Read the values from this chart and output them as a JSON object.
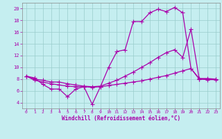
{
  "xlabel": "Windchill (Refroidissement éolien,°C)",
  "xlim": [
    -0.5,
    23.5
  ],
  "ylim": [
    3,
    21
  ],
  "yticks": [
    4,
    6,
    8,
    10,
    12,
    14,
    16,
    18,
    20
  ],
  "xticks": [
    0,
    1,
    2,
    3,
    4,
    5,
    6,
    7,
    8,
    9,
    10,
    11,
    12,
    13,
    14,
    15,
    16,
    17,
    18,
    19,
    20,
    21,
    22,
    23
  ],
  "bg_color": "#c5eef0",
  "line_color": "#aa00aa",
  "grid_color": "#99cccc",
  "line1_x": [
    0,
    1,
    2,
    3,
    4,
    5,
    6,
    7,
    8,
    9,
    10,
    11,
    12,
    13,
    14,
    15,
    16,
    17,
    18,
    19,
    20,
    21,
    22,
    23
  ],
  "line1_y": [
    8.5,
    8.2,
    7.1,
    6.3,
    6.3,
    5.0,
    6.3,
    6.7,
    3.7,
    6.7,
    10.0,
    12.7,
    13.0,
    17.8,
    17.8,
    19.3,
    19.9,
    19.5,
    20.2,
    19.3,
    9.8,
    8.1,
    8.1,
    8.0
  ],
  "line2_x": [
    0,
    1,
    2,
    3,
    4,
    5,
    6,
    7,
    8,
    9,
    10,
    11,
    12,
    13,
    14,
    15,
    16,
    17,
    18,
    19,
    20,
    21,
    22,
    23
  ],
  "line2_y": [
    8.5,
    8.0,
    7.8,
    7.5,
    7.5,
    7.2,
    7.0,
    6.8,
    6.7,
    6.8,
    7.3,
    7.8,
    8.5,
    9.2,
    10.0,
    10.8,
    11.7,
    12.5,
    13.0,
    11.7,
    16.5,
    8.0,
    8.0,
    8.0
  ],
  "line3_x": [
    0,
    1,
    2,
    3,
    4,
    5,
    6,
    7,
    8,
    9,
    10,
    11,
    12,
    13,
    14,
    15,
    16,
    17,
    18,
    19,
    20,
    21,
    22,
    23
  ],
  "line3_y": [
    8.5,
    7.8,
    7.5,
    7.2,
    7.0,
    6.8,
    6.7,
    6.7,
    6.6,
    6.7,
    6.9,
    7.1,
    7.3,
    7.5,
    7.7,
    8.0,
    8.3,
    8.6,
    9.0,
    9.4,
    9.8,
    8.0,
    7.9,
    7.9
  ]
}
